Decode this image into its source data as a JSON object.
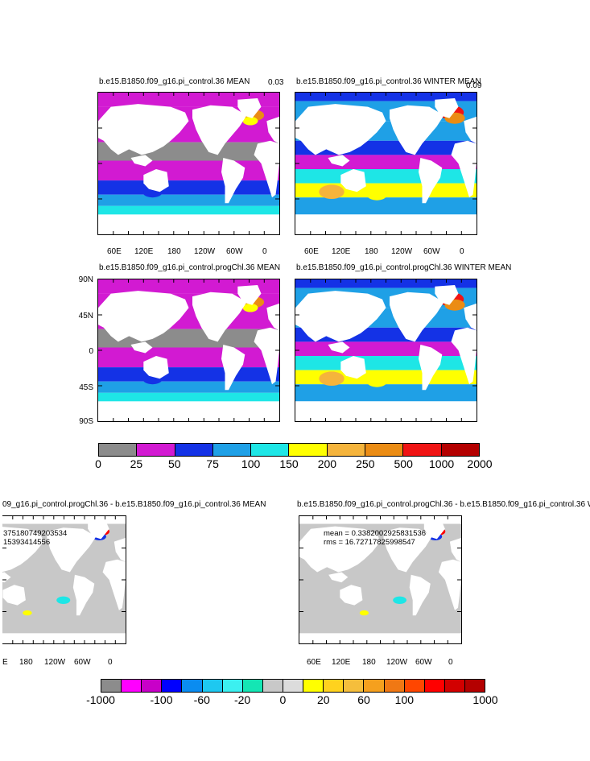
{
  "panels": [
    {
      "title": "b.e15.B1850.f09_g16.pi_control.36 MEAN",
      "corner": "0.03",
      "style": "mean",
      "xticks": [
        "60E",
        "120E",
        "180",
        "120W",
        "60W",
        "0"
      ]
    },
    {
      "title": "b.e15.B1850.f09_g16.pi_control.36 WINTER MEAN",
      "corner": "0.09",
      "style": "winter",
      "xticks": [
        "60E",
        "120E",
        "180",
        "120W",
        "60W",
        "0"
      ]
    },
    {
      "title": "b.e15.B1850.f09_g16.pi_control.progChl.36 MEAN",
      "style": "mean",
      "yticks": [
        "90N",
        "45N",
        "0",
        "45S",
        "90S"
      ]
    },
    {
      "title": "b.e15.B1850.f09_g16.pi_control.progChl.36 WINTER MEAN",
      "style": "winter"
    },
    {
      "title": "09_g16.pi_control.progChl.36 - b.e15.B1850.f09_g16.pi_control.36 MEAN",
      "style": "diff",
      "stats": [
        "375180749203534",
        "15393414556"
      ],
      "xticks": [
        "E",
        "180",
        "120W",
        "60W",
        "0"
      ]
    },
    {
      "title": "b.e15.B1850.f09_g16.pi_control.progChl.36 - b.e15.B1850.f09_g16.pi_control.36 WI",
      "style": "diff",
      "stats": [
        "mean = 0.3382002925831536",
        "rms = 16.72717825998547"
      ],
      "xticks": [
        "60E",
        "120E",
        "180",
        "120W",
        "60W",
        "0"
      ]
    }
  ],
  "legend_top": {
    "colors": [
      "#8c8c8c",
      "#d21ad2",
      "#1432e6",
      "#1fa0e6",
      "#1ee6e6",
      "#ffff00",
      "#f5b43c",
      "#eb8c14",
      "#f01414",
      "#b40000"
    ],
    "labels": [
      "0",
      "25",
      "50",
      "75",
      "100",
      "150",
      "200",
      "250",
      "500",
      "1000",
      "2000"
    ]
  },
  "legend_bottom": {
    "colors": [
      "#8c8c8c",
      "#ff00ff",
      "#c800c8",
      "#0000ff",
      "#0a8cf0",
      "#1ec8f0",
      "#3cf0f0",
      "#14e6b4",
      "#c8c8c8",
      "#dcdcdc",
      "#ffff00",
      "#ffd21e",
      "#f5be3c",
      "#f5a01e",
      "#f07814",
      "#ff4600",
      "#ff0000",
      "#d20000",
      "#b40000"
    ],
    "labels": [
      "-1000",
      "-100",
      "-60",
      "-20",
      "0",
      "20",
      "60",
      "100",
      "1000"
    ]
  }
}
